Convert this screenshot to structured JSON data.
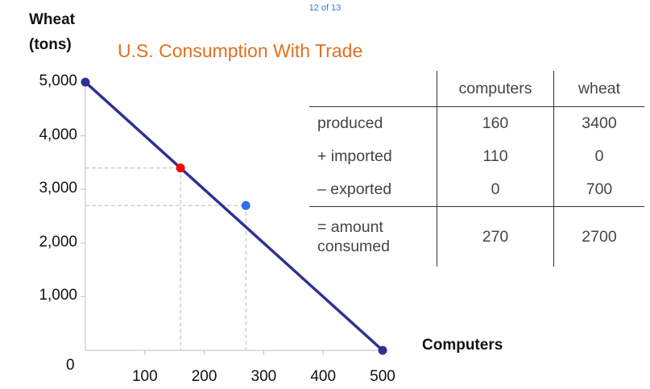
{
  "page_counter": "12 of 13",
  "chart_data": {
    "type": "line",
    "title": "U.S. Consumption With Trade",
    "ylabel_lines": [
      "Wheat",
      "(tons)"
    ],
    "xlabel": "Computers",
    "xlim": [
      0,
      500
    ],
    "ylim": [
      0,
      5000
    ],
    "x_ticks": [
      "100",
      "200",
      "300",
      "400",
      "500"
    ],
    "x_tick_values": [
      100,
      200,
      300,
      400,
      500
    ],
    "y_ticks": [
      "5,000",
      "4,000",
      "3,000",
      "2,000",
      "1,000"
    ],
    "y_tick_values": [
      5000,
      4000,
      3000,
      2000,
      1000
    ],
    "origin_label": "0",
    "series": [
      {
        "points": [
          [
            0,
            5000
          ],
          [
            500,
            0
          ]
        ],
        "color": "#2e3192"
      }
    ],
    "endpoints": [
      [
        0,
        5000
      ],
      [
        500,
        0
      ]
    ],
    "endpoint_color": "#2e3192",
    "production_point": {
      "x": 160,
      "y": 3400,
      "color": "#ff0000"
    },
    "consumption_point": {
      "x": 270,
      "y": 2700,
      "color": "#2f6ff0"
    },
    "grid": false
  },
  "table": {
    "headers": [
      "",
      "computers",
      "wheat"
    ],
    "rows": [
      {
        "label": "produced",
        "computers": "160",
        "wheat": "3400"
      },
      {
        "label": "+ imported",
        "computers": "110",
        "wheat": "0"
      },
      {
        "label": "– exported",
        "computers": "0",
        "wheat": "700"
      }
    ],
    "total": {
      "label_lines": [
        "= amount",
        "consumed"
      ],
      "computers": "270",
      "wheat": "2700"
    }
  }
}
